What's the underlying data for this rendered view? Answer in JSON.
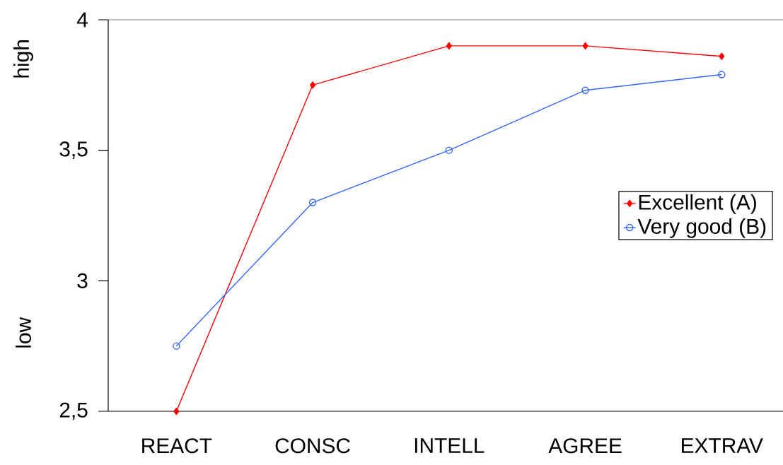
{
  "chart_data": {
    "type": "line",
    "categories": [
      "REACT",
      "CONSC",
      "INTELL",
      "AGREE",
      "EXTRAV"
    ],
    "series": [
      {
        "name": "Excellent (A)",
        "color": "#ff0000",
        "marker": "diamond",
        "values": [
          2.5,
          3.75,
          3.9,
          3.9,
          3.86
        ]
      },
      {
        "name": "Very good (B)",
        "color": "#3366ff",
        "marker": "circle",
        "values": [
          2.75,
          3.3,
          3.5,
          3.73,
          3.79
        ]
      }
    ],
    "ylim": [
      2.5,
      4
    ],
    "yticks": [
      {
        "value": 2.5,
        "label": "2,5"
      },
      3,
      {
        "value": 3.5,
        "label": "3,5"
      },
      4
    ],
    "annotations": [
      "high",
      "low"
    ],
    "legend": "right",
    "grid": false
  }
}
